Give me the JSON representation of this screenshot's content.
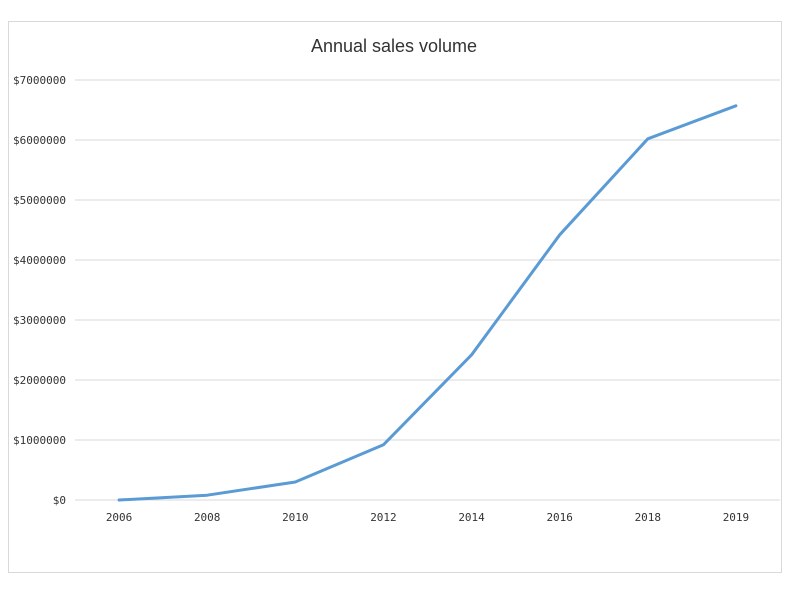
{
  "chart_data": {
    "type": "line",
    "title": "Annual sales volume",
    "xlabel": "",
    "ylabel": "",
    "categories": [
      "2006",
      "2008",
      "2010",
      "2012",
      "2014",
      "2016",
      "2018",
      "2019"
    ],
    "series": [
      {
        "values": [
          0,
          80000,
          300000,
          920000,
          2420000,
          4420000,
          6020000,
          6570000
        ]
      }
    ],
    "ylim": [
      0,
      7000000
    ],
    "yticks": [
      0,
      1000000,
      2000000,
      3000000,
      4000000,
      5000000,
      6000000,
      7000000
    ],
    "ytick_labels": [
      "$0",
      "$1000000",
      "$2000000",
      "$3000000",
      "$4000000",
      "$5000000",
      "$6000000",
      "$7000000"
    ],
    "grid": "horizontal",
    "legend": "none",
    "colors": {
      "series": "#5b9bd5",
      "grid": "#d9d9d9",
      "text": "#333333"
    }
  }
}
